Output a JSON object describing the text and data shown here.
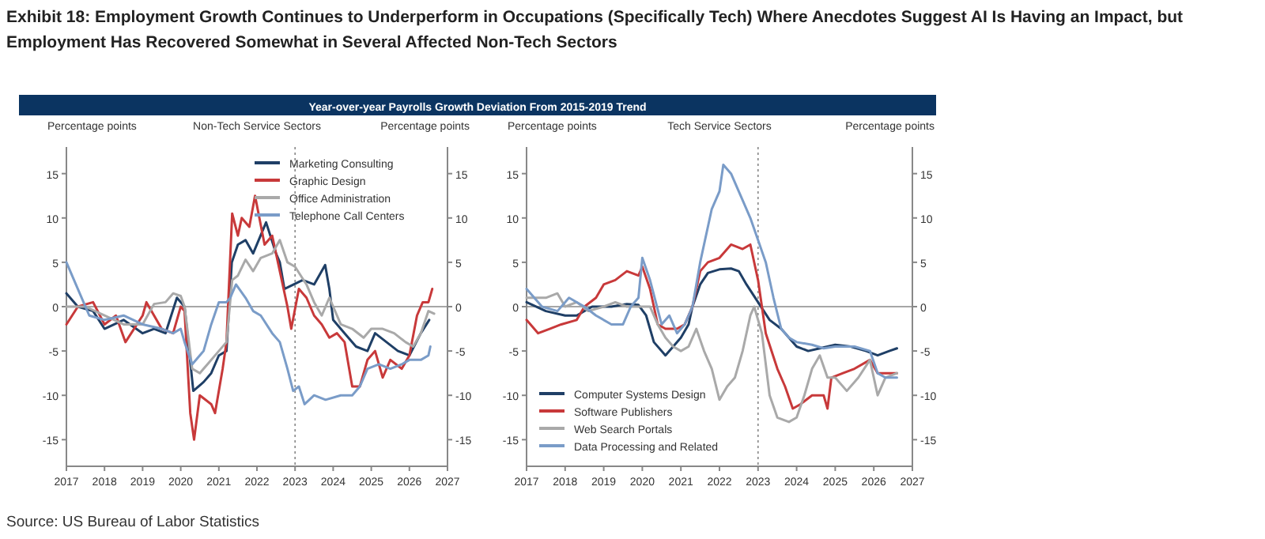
{
  "chart_data": [
    {
      "type": "other",
      "title": "Exhibit 18: Employment Growth Continues to Underperform in Occupations (Specifically Tech) Where Anecdotes Suggest AI Is Having an Impact, but Employment Has Recovered Somewhat in Several Affected Non-Tech Sectors",
      "subtitle": "Year-over-year Payrolls Growth Deviation From 2015-2019 Trend",
      "annotations": [
        "Source: US Bureau of Labor Statistics"
      ]
    },
    {
      "type": "line",
      "title": "Non-Tech Service Sectors",
      "ylabel": "Percentage points",
      "y2label": "Percentage points",
      "xlim": [
        2017,
        2027
      ],
      "xticks": [
        2017,
        2018,
        2019,
        2020,
        2021,
        2022,
        2023,
        2024,
        2025,
        2026,
        2027
      ],
      "ylim": [
        -18,
        18
      ],
      "yticks": [
        -15,
        -10,
        -5,
        0,
        5,
        10,
        15
      ],
      "y2lim": [
        -18,
        18
      ],
      "y2ticks": [
        -15,
        -10,
        -5,
        0,
        5,
        10,
        15
      ],
      "legend": "top right",
      "ref_lines": [
        {
          "axis": "x",
          "value": 2023,
          "line_style": "dotted",
          "color": "#888888"
        },
        {
          "axis": "y",
          "value": 0,
          "line_style": "solid",
          "color": "#888888"
        }
      ],
      "series": [
        {
          "name": "Marketing Consulting",
          "color": "#1f3f66",
          "x": [
            2017,
            2017.3,
            2017.7,
            2018,
            2018.5,
            2019,
            2019.3,
            2019.6,
            2019.9,
            2020.1,
            2020.33,
            2020.6,
            2020.8,
            2021,
            2021.2,
            2021.34,
            2021.5,
            2021.7,
            2021.9,
            2022.24,
            2022.5,
            2022.6,
            2022.72,
            2023.2,
            2023.5,
            2023.79,
            2023.9,
            2024,
            2024.3,
            2024.6,
            2024.9,
            2025.1,
            2025.4,
            2025.7,
            2026,
            2026.3,
            2026.52
          ],
          "values": [
            1.5,
            0,
            -0.5,
            -2.5,
            -1.5,
            -3,
            -2.5,
            -3,
            1,
            0,
            -9.5,
            -8.5,
            -7.5,
            -5.5,
            -5,
            5,
            7,
            7.5,
            6,
            9.5,
            6,
            5,
            2,
            3,
            2.5,
            4.7,
            2,
            -1.5,
            -3,
            -4.5,
            -5,
            -3,
            -4,
            -5,
            -5.5,
            -3,
            -1.5
          ]
        },
        {
          "name": "Graphic Design",
          "color": "#c8393a",
          "x": [
            2017,
            2017.3,
            2017.7,
            2018,
            2018.3,
            2018.55,
            2019,
            2019.1,
            2019.5,
            2019.8,
            2020,
            2020.1,
            2020.25,
            2020.35,
            2020.5,
            2020.8,
            2020.9,
            2021.1,
            2021.2,
            2021.35,
            2021.5,
            2021.6,
            2021.8,
            2021.95,
            2022.2,
            2022.4,
            2022.6,
            2022.8,
            2022.9,
            2023.1,
            2023.3,
            2023.5,
            2023.7,
            2023.9,
            2024.1,
            2024.3,
            2024.5,
            2024.7,
            2024.9,
            2025.1,
            2025.3,
            2025.5,
            2025.8,
            2026,
            2026.2,
            2026.35,
            2026.5,
            2026.6
          ],
          "values": [
            -2,
            0,
            0.5,
            -2,
            -1,
            -4,
            -1,
            0.5,
            -2.5,
            -3,
            0,
            -0.5,
            -12,
            -15,
            -10,
            -11,
            -12,
            -7,
            -4,
            10.5,
            8,
            10,
            9,
            12.5,
            7,
            8,
            4,
            0,
            -2.5,
            2,
            1,
            -1,
            -2,
            -3.5,
            -3,
            -4,
            -9,
            -9,
            -6,
            -5,
            -8,
            -6,
            -7,
            -5.5,
            -1,
            0.5,
            0.5,
            2
          ]
        },
        {
          "name": "Office Administration",
          "color": "#a9a9a9",
          "x": [
            2017,
            2017.5,
            2018,
            2018.5,
            2019,
            2019.3,
            2019.6,
            2019.8,
            2020,
            2020.1,
            2020.3,
            2020.5,
            2020.7,
            2021,
            2021.2,
            2021.35,
            2021.5,
            2021.7,
            2021.9,
            2022.1,
            2022.4,
            2022.6,
            2022.8,
            2023,
            2023.3,
            2023.5,
            2023.7,
            2023.9,
            2024.2,
            2024.5,
            2024.8,
            2025,
            2025.3,
            2025.6,
            2025.9,
            2026.1,
            2026.3,
            2026.5,
            2026.65
          ],
          "values": [
            0,
            0,
            -1,
            -2,
            -2,
            0.3,
            0.5,
            1.5,
            1.2,
            0,
            -7,
            -7.5,
            -6.5,
            -5,
            -4,
            3,
            3.5,
            5.3,
            4,
            5.5,
            6,
            7.5,
            5,
            4.5,
            2.5,
            0.5,
            -1,
            1,
            -2,
            -2.5,
            -3.5,
            -2.5,
            -2.5,
            -3,
            -4,
            -4.5,
            -3,
            -0.5,
            -0.8
          ]
        },
        {
          "name": "Telephone Call Centers",
          "color": "#7a9cc8",
          "x": [
            2017,
            2017.3,
            2017.6,
            2018,
            2018.5,
            2019,
            2019.5,
            2019.8,
            2020,
            2020.1,
            2020.3,
            2020.6,
            2020.8,
            2021,
            2021.2,
            2021.3,
            2021.45,
            2021.7,
            2021.9,
            2022.1,
            2022.4,
            2022.6,
            2022.8,
            2022.95,
            2023.1,
            2023.25,
            2023.5,
            2023.8,
            2024.2,
            2024.5,
            2024.7,
            2024.9,
            2025.2,
            2025.5,
            2025.8,
            2026,
            2026.3,
            2026.5,
            2026.55
          ],
          "values": [
            5,
            2,
            -1,
            -1.5,
            -1,
            -2,
            -2.5,
            -3,
            -2.5,
            -4,
            -6.5,
            -5,
            -2,
            0.5,
            0.5,
            1,
            2.5,
            1,
            -0.5,
            -1,
            -3,
            -4,
            -7,
            -9.5,
            -9,
            -11,
            -10,
            -10.5,
            -10,
            -10,
            -9,
            -7,
            -6.5,
            -7,
            -6.5,
            -6,
            -6,
            -5.5,
            -4.5
          ]
        }
      ]
    },
    {
      "type": "line",
      "title": "Tech Service Sectors",
      "ylabel": "Percentage points",
      "y2label": "Percentage points",
      "xlim": [
        2017,
        2027
      ],
      "xticks": [
        2017,
        2018,
        2019,
        2020,
        2021,
        2022,
        2023,
        2024,
        2025,
        2026,
        2027
      ],
      "ylim": [
        -18,
        18
      ],
      "yticks": [
        -15,
        -10,
        -5,
        0,
        5,
        10,
        15
      ],
      "y2lim": [
        -18,
        18
      ],
      "y2ticks": [
        -15,
        -10,
        -5,
        0,
        5,
        10,
        15
      ],
      "legend": "bottom left",
      "ref_lines": [
        {
          "axis": "x",
          "value": 2023,
          "line_style": "dotted",
          "color": "#888888"
        },
        {
          "axis": "y",
          "value": 0,
          "line_style": "solid",
          "color": "#888888"
        }
      ],
      "series": [
        {
          "name": "Computer Systems Design",
          "color": "#1f3f66",
          "x": [
            2017,
            2017.5,
            2018,
            2018.3,
            2018.7,
            2019.2,
            2019.6,
            2019.9,
            2020.1,
            2020.3,
            2020.6,
            2020.8,
            2021,
            2021.2,
            2021.3,
            2021.5,
            2021.7,
            2022,
            2022.3,
            2022.5,
            2022.7,
            2023,
            2023.3,
            2023.6,
            2024,
            2024.3,
            2024.6,
            2025,
            2025.4,
            2025.8,
            2026.1,
            2026.4,
            2026.6
          ],
          "values": [
            0.5,
            -0.5,
            -1,
            -1,
            0,
            0,
            0.3,
            0.2,
            -1,
            -4,
            -5.5,
            -4.5,
            -3.5,
            -2,
            0,
            2.5,
            3.8,
            4.2,
            4.3,
            4,
            2.5,
            0.5,
            -1.5,
            -2.5,
            -4.5,
            -5,
            -4.7,
            -4.3,
            -4.5,
            -5,
            -5.5,
            -5,
            -4.7
          ]
        },
        {
          "name": "Software Publishers",
          "color": "#c8393a",
          "x": [
            2017,
            2017.3,
            2017.6,
            2017.9,
            2018.3,
            2018.5,
            2018.8,
            2019,
            2019.3,
            2019.6,
            2019.9,
            2020,
            2020.2,
            2020.4,
            2020.6,
            2020.9,
            2021.1,
            2021.3,
            2021.5,
            2021.7,
            2022,
            2022.3,
            2022.6,
            2022.8,
            2023,
            2023.2,
            2023.5,
            2023.7,
            2023.9,
            2024.1,
            2024.4,
            2024.7,
            2024.8,
            2024.9,
            2025.2,
            2025.5,
            2025.9,
            2026.1,
            2026.4,
            2026.6
          ],
          "values": [
            -1.5,
            -3,
            -2.5,
            -2,
            -1.5,
            0,
            1,
            2.5,
            3,
            4,
            3.5,
            4.5,
            2,
            -2,
            -2.5,
            -2.5,
            -2,
            0,
            4,
            5,
            5.5,
            7,
            6.5,
            7,
            3,
            -3,
            -7,
            -9,
            -11.5,
            -11,
            -10,
            -10,
            -11.5,
            -8,
            -7.5,
            -7,
            -6,
            -7.5,
            -7.5,
            -7.5
          ]
        },
        {
          "name": "Web Search Portals",
          "color": "#a9a9a9",
          "x": [
            2017,
            2017.5,
            2017.8,
            2018,
            2018.3,
            2018.6,
            2019,
            2019.3,
            2019.6,
            2019.9,
            2020.2,
            2020.4,
            2020.6,
            2020.8,
            2021,
            2021.2,
            2021.4,
            2021.6,
            2021.8,
            2022,
            2022.2,
            2022.4,
            2022.6,
            2022.8,
            2022.9,
            2023.1,
            2023.3,
            2023.5,
            2023.8,
            2024,
            2024.2,
            2024.4,
            2024.6,
            2024.8,
            2025,
            2025.3,
            2025.6,
            2025.9,
            2026.1,
            2026.3,
            2026.6
          ],
          "values": [
            1,
            1,
            1.5,
            0,
            0.5,
            -0.5,
            0,
            0.5,
            0,
            0,
            0,
            -2,
            -3.5,
            -4.5,
            -5,
            -4.5,
            -2.5,
            -5,
            -7,
            -10.5,
            -9,
            -8,
            -5,
            -1,
            0,
            -3,
            -10,
            -12.5,
            -13,
            -12.5,
            -10,
            -7,
            -5.5,
            -8,
            -8,
            -9.5,
            -8,
            -6,
            -10,
            -8,
            -7.5
          ]
        },
        {
          "name": "Data Processing and Related",
          "color": "#7a9cc8",
          "x": [
            2017,
            2017.4,
            2017.8,
            2018.1,
            2018.5,
            2018.8,
            2019.2,
            2019.5,
            2019.7,
            2019.9,
            2020,
            2020.2,
            2020.5,
            2020.7,
            2020.9,
            2021.1,
            2021.3,
            2021.5,
            2021.8,
            2022,
            2022.1,
            2022.3,
            2022.5,
            2022.8,
            2023,
            2023.2,
            2023.4,
            2023.6,
            2023.8,
            2024,
            2024.4,
            2024.7,
            2025,
            2025.5,
            2025.9,
            2026.1,
            2026.3,
            2026.6
          ],
          "values": [
            2,
            0,
            -0.5,
            1,
            0,
            -1,
            -2,
            -2,
            0,
            1,
            5.5,
            3,
            -2,
            -1,
            -3,
            -2,
            0,
            5,
            11,
            13,
            16,
            15,
            13,
            10,
            7.5,
            5,
            1,
            -2.5,
            -3.5,
            -4,
            -4.3,
            -4.7,
            -4.5,
            -4.5,
            -5,
            -7.5,
            -8,
            -8
          ]
        }
      ]
    }
  ]
}
